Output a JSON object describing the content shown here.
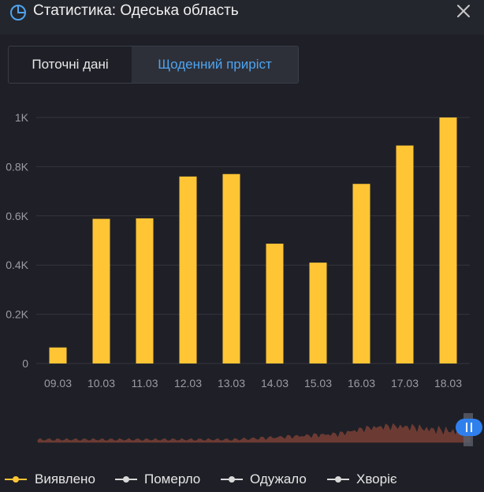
{
  "header": {
    "title": "Статистика: Одеська область",
    "icon": "pie-chart-icon",
    "close_icon": "close-icon"
  },
  "tabs": [
    {
      "label": "Поточні дані",
      "active": false
    },
    {
      "label": "Щоденний приріст",
      "active": true
    }
  ],
  "colors": {
    "accent": "#4ea4f0",
    "bar": "#ffc535",
    "grid": "#33353e",
    "brush_area": "#6b3a32",
    "handle": "#2f80ed"
  },
  "chart_data": {
    "type": "bar",
    "categories": [
      "09.03",
      "10.03",
      "11.03",
      "12.03",
      "13.03",
      "14.03",
      "15.03",
      "16.03",
      "17.03",
      "18.03"
    ],
    "series": [
      {
        "name": "Виявлено",
        "values": [
          65,
          588,
          590,
          760,
          770,
          487,
          410,
          730,
          886,
          1000
        ]
      }
    ],
    "yticks": [
      0,
      200,
      400,
      600,
      800,
      1000
    ],
    "ytick_labels": [
      "0",
      "0.2K",
      "0.4K",
      "0.6K",
      "0.8K",
      "1K"
    ],
    "ylim": [
      0,
      1000
    ],
    "grid": true
  },
  "legend": [
    {
      "label": "Виявлено",
      "color": "#ffc535"
    },
    {
      "label": "Померло",
      "color": "#d9d9d9"
    },
    {
      "label": "Одужало",
      "color": "#d9d9d9"
    },
    {
      "label": "Хворіє",
      "color": "#d9d9d9"
    }
  ]
}
